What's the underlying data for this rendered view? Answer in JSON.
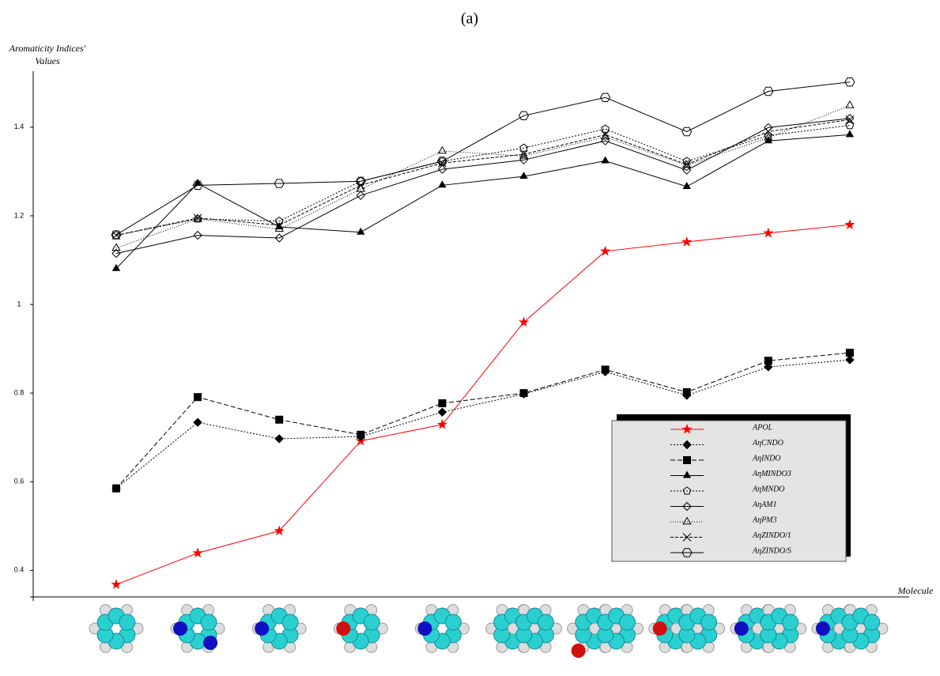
{
  "chart_data": {
    "type": "line",
    "title": "(a)",
    "y_label": [
      "Aromaticity Indices'",
      "Values"
    ],
    "x_label": "Molecule",
    "categories": [
      null,
      null,
      null,
      null,
      null,
      null,
      null,
      null,
      null,
      null
    ],
    "ylim": [
      0.34,
      1.53
    ],
    "yticks": [
      0.4,
      0.6,
      0.8,
      1,
      1.2,
      1.4
    ],
    "series": [
      {
        "name": "APOL",
        "color": "#ff0000",
        "marker": "star",
        "dash": "",
        "values": [
          0.368,
          0.439,
          0.489,
          0.692,
          0.729,
          0.96,
          1.12,
          1.141,
          1.161,
          1.18
        ]
      },
      {
        "name": "AηCNDO",
        "color": "#000000",
        "marker": "diamond-filled",
        "dash": "2,2",
        "values": [
          0.585,
          0.734,
          0.697,
          0.702,
          0.757,
          0.798,
          0.848,
          0.795,
          0.859,
          0.875
        ]
      },
      {
        "name": "AηINDO",
        "color": "#000000",
        "marker": "square",
        "dash": "6,3",
        "values": [
          0.585,
          0.791,
          0.74,
          0.706,
          0.777,
          0.8,
          0.853,
          0.802,
          0.873,
          0.891
        ]
      },
      {
        "name": "AηMINDO3",
        "color": "#000000",
        "marker": "triangle-filled",
        "dash": "",
        "values": [
          1.081,
          1.273,
          1.175,
          1.163,
          1.269,
          1.289,
          1.324,
          1.266,
          1.369,
          1.383
        ]
      },
      {
        "name": "AηMNDO",
        "color": "#000000",
        "marker": "pentagon",
        "dash": "2,2",
        "values": [
          1.156,
          1.193,
          1.188,
          1.278,
          1.323,
          1.353,
          1.396,
          1.323,
          1.381,
          1.404
        ]
      },
      {
        "name": "AηAM1",
        "color": "#000000",
        "marker": "diamond",
        "dash": "",
        "values": [
          1.115,
          1.156,
          1.15,
          1.246,
          1.305,
          1.326,
          1.369,
          1.303,
          1.399,
          1.42
        ]
      },
      {
        "name": "AηPM3",
        "color": "#000000",
        "marker": "triangle",
        "dash": "1,2",
        "values": [
          1.127,
          1.193,
          1.17,
          1.26,
          1.346,
          1.335,
          1.378,
          1.314,
          1.376,
          1.449
        ]
      },
      {
        "name": "AηZINDO/1",
        "color": "#000000",
        "marker": "cross",
        "dash": "4,2",
        "values": [
          1.156,
          1.195,
          1.179,
          1.269,
          1.319,
          1.339,
          1.383,
          1.316,
          1.39,
          1.417
        ]
      },
      {
        "name": "AηZINDO/S",
        "color": "#000000",
        "marker": "hexagon",
        "dash": "",
        "values": [
          1.157,
          1.269,
          1.273,
          1.278,
          1.323,
          1.426,
          1.467,
          1.39,
          1.481,
          1.502
        ]
      }
    ]
  }
}
